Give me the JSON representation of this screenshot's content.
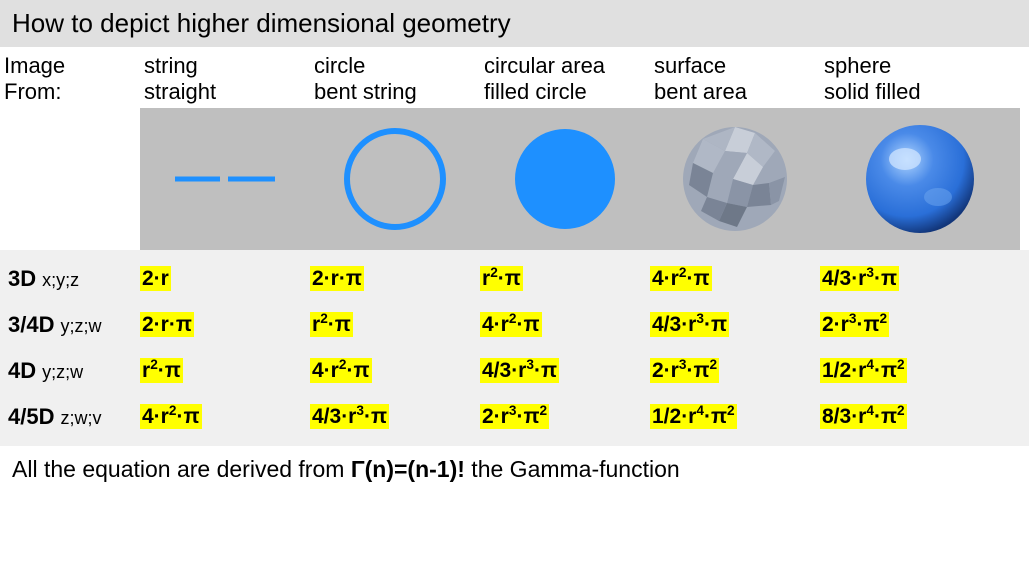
{
  "title": "How to depict higher dimensional geometry",
  "header": {
    "row1_col0": "Image",
    "row2_col0": "From:",
    "cols": [
      {
        "line1": "string",
        "line2": "straight"
      },
      {
        "line1": "circle",
        "line2": "bent string"
      },
      {
        "line1": "circular area",
        "line2": "filled circle"
      },
      {
        "line1": "surface",
        "line2": "bent area"
      },
      {
        "line1": "sphere",
        "line2": "solid filled"
      }
    ]
  },
  "images": {
    "background": "#bfbfbf",
    "stroke_blue": "#1e90ff",
    "fill_blue": "#1e90ff",
    "faceted_base": "#9fa8b8",
    "faceted_light": "#c8ced8",
    "faceted_dark": "#7a8496",
    "sphere_light": "#7fb8ff",
    "sphere_mid": "#2a6fd8",
    "sphere_dark": "#12367a"
  },
  "rows": [
    {
      "dim": "3D",
      "coords": "x;y;z",
      "formulas": [
        "2·r",
        "2·r·π",
        "r^2·π",
        "4·r^2·π",
        "4/3·r^3·π"
      ]
    },
    {
      "dim": "3/4D",
      "coords": "y;z;w",
      "formulas": [
        "2·r·π",
        "r^2·π",
        "4·r^2·π",
        "4/3·r^3·π",
        "2·r^3·π^2"
      ]
    },
    {
      "dim": "4D",
      "coords": "y;z;w",
      "formulas": [
        "r^2·π",
        "4·r^2·π",
        "4/3·r^3·π",
        "2·r^3·π^2",
        "1/2·r^4·π^2"
      ]
    },
    {
      "dim": "4/5D",
      "coords": "z;w;v",
      "formulas": [
        "4·r^2·π",
        "4/3·r^3·π",
        "2·r^3·π^2",
        "1/2·r^4·π^2",
        "8/3·r^4·π^2"
      ]
    }
  ],
  "footer": {
    "pre": "All the equation are derived from ",
    "gamma": "Γ(n)=(n-1)!",
    "post": " the Gamma-function"
  },
  "style": {
    "title_bg": "#e0e0e0",
    "formula_bg": "#f0f0f0",
    "highlight": "#ffff00",
    "font": "Century Gothic",
    "title_fontsize": 26,
    "header_fontsize": 22,
    "formula_fontsize": 21,
    "footer_fontsize": 23
  }
}
